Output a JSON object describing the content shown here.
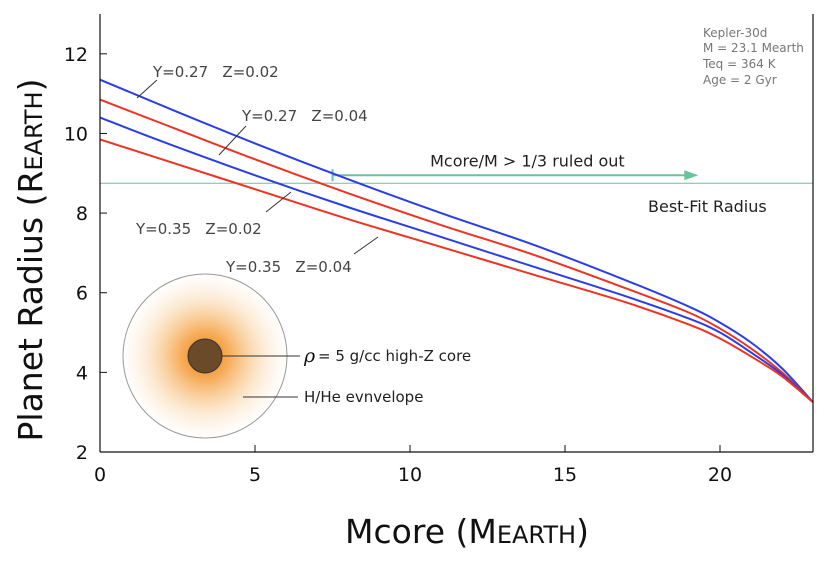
{
  "chart_data": {
    "type": "line",
    "title": "",
    "xlabel": {
      "main": "Mcore (M",
      "sub": "EARTH",
      "close": ")"
    },
    "ylabel": {
      "main": "Planet Radius (R",
      "sub": "EARTH",
      "close": ")"
    },
    "xlim": [
      0,
      23
    ],
    "ylim": [
      2,
      13
    ],
    "xticks": [
      0,
      5,
      10,
      15,
      20
    ],
    "yticks": [
      2,
      4,
      6,
      8,
      10,
      12
    ],
    "grid": false,
    "colors": {
      "blue": "#2a3ee6",
      "red": "#ee3322",
      "green": "#6cc29a",
      "axis": "#111111"
    },
    "series": [
      {
        "name": "Y=0.27   Z=0.02",
        "color": "#2a3ee6",
        "x": [
          0,
          2,
          5,
          8,
          11,
          14,
          17,
          19,
          20,
          21,
          22,
          23
        ],
        "y": [
          11.35,
          10.7,
          9.75,
          8.85,
          8.0,
          7.2,
          6.3,
          5.65,
          5.25,
          4.75,
          4.1,
          3.25
        ]
      },
      {
        "name": "Y=0.27   Z=0.04",
        "color": "#ee3322",
        "x": [
          0,
          2,
          5,
          8,
          11,
          14,
          17,
          19,
          20,
          21,
          22,
          23
        ],
        "y": [
          10.85,
          10.25,
          9.35,
          8.5,
          7.7,
          6.95,
          6.1,
          5.5,
          5.1,
          4.6,
          4.0,
          3.25
        ]
      },
      {
        "name": "Y=0.35   Z=0.02",
        "color": "#2a3ee6",
        "x": [
          0,
          2,
          5,
          8,
          11,
          14,
          17,
          19,
          20,
          21,
          22,
          23
        ],
        "y": [
          10.4,
          9.8,
          8.95,
          8.15,
          7.4,
          6.65,
          5.9,
          5.35,
          5.0,
          4.5,
          3.95,
          3.25
        ]
      },
      {
        "name": "Y=0.35   Z=0.04",
        "color": "#ee3322",
        "x": [
          0,
          2,
          5,
          8,
          11,
          14,
          17,
          19,
          20,
          21,
          22,
          23
        ],
        "y": [
          9.85,
          9.35,
          8.6,
          7.85,
          7.15,
          6.45,
          5.75,
          5.2,
          4.85,
          4.4,
          3.9,
          3.25
        ]
      }
    ],
    "curve_labels": [
      "Y=0.27   Z=0.02",
      "Y=0.27   Z=0.04",
      "Y=0.35   Z=0.02",
      "Y=0.35   Z=0.04"
    ],
    "best_fit": {
      "y": 8.75,
      "label": "Best-Fit Radius"
    },
    "ruled_out": {
      "x_start": 7.5,
      "x_end": 19.3,
      "y": 8.95,
      "label": "Mcore/M > 1/3 ruled out"
    },
    "info_box": [
      "Kepler-30d",
      "M = 23.1 Mearth",
      "Teq = 364 K",
      "Age = 2 Gyr"
    ],
    "inset": {
      "rho_symbol": "ρ",
      "core_label": " =  5 g/cc  high-Z core",
      "envelope_label": "H/He evnvelope"
    }
  }
}
